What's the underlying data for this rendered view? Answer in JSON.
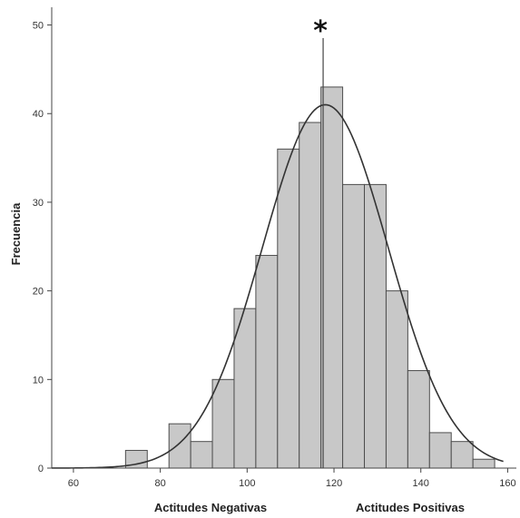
{
  "chart_data": {
    "type": "bar",
    "subtype": "histogram",
    "ylabel": "Frecuencia",
    "x_annotations": [
      "Actitudes Negativas",
      "Actitudes Positivas"
    ],
    "marker_symbol": "*",
    "marker_x": 117.5,
    "xlim": [
      55,
      162
    ],
    "ylim": [
      0,
      52
    ],
    "x_ticks": [
      60,
      80,
      100,
      120,
      140,
      160
    ],
    "y_ticks": [
      0,
      10,
      20,
      30,
      40,
      50
    ],
    "bin_width": 5,
    "bins": [
      {
        "start": 72,
        "count": 2
      },
      {
        "start": 82,
        "count": 5
      },
      {
        "start": 87,
        "count": 3
      },
      {
        "start": 92,
        "count": 10
      },
      {
        "start": 97,
        "count": 18
      },
      {
        "start": 102,
        "count": 24
      },
      {
        "start": 107,
        "count": 36
      },
      {
        "start": 112,
        "count": 39
      },
      {
        "start": 117,
        "count": 43
      },
      {
        "start": 122,
        "count": 32
      },
      {
        "start": 127,
        "count": 32
      },
      {
        "start": 132,
        "count": 20
      },
      {
        "start": 137,
        "count": 11
      },
      {
        "start": 142,
        "count": 4
      },
      {
        "start": 147,
        "count": 3
      },
      {
        "start": 152,
        "count": 1
      }
    ],
    "normal_curve": {
      "mean": 118,
      "sd": 14.5,
      "peak": 41
    },
    "colors": {
      "bar_fill": "#c8c8c8",
      "bar_stroke": "#4d4d4d",
      "curve": "#333333",
      "axis": "#444444"
    }
  }
}
